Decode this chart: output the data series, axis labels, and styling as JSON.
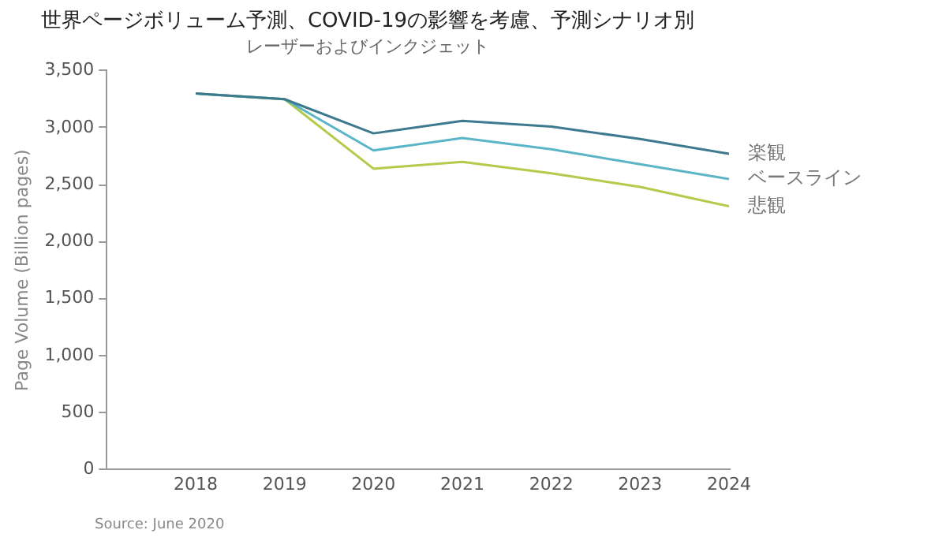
{
  "chart_data": {
    "type": "line",
    "title": "世界ページボリューム予測、COVID-19の影響を考慮、予測シナリオ別",
    "subtitle": "レーザーおよびインクジェット",
    "ylabel": "Page Volume (Billion pages)",
    "annotations": [
      "Source: June 2020"
    ],
    "x": [
      2018,
      2019,
      2020,
      2021,
      2022,
      2023,
      2024
    ],
    "xlim": [
      2017,
      2024
    ],
    "xticks": [
      2018,
      2019,
      2020,
      2021,
      2022,
      2023,
      2024
    ],
    "ylim": [
      0,
      3500
    ],
    "yticks": [
      0,
      500,
      {
        "value": 1000,
        "label": "1,000"
      },
      {
        "value": 1500,
        "label": "1,500"
      },
      {
        "value": 2000,
        "label": "2,000"
      },
      {
        "value": 2500,
        "label": "2,500"
      },
      {
        "value": 3000,
        "label": "3,000"
      },
      {
        "value": 3500,
        "label": "3,500"
      }
    ],
    "grid": false,
    "legend": false,
    "marker": "none",
    "line_style": "solid",
    "series": [
      {
        "name": "楽観",
        "color": "#3e7a8f",
        "values": [
          3300,
          3250,
          2950,
          3060,
          3010,
          2900,
          2770
        ]
      },
      {
        "name": "ベースライン",
        "color": "#5bb5c8",
        "values": [
          3300,
          3250,
          2800,
          2910,
          2810,
          2680,
          2550
        ]
      },
      {
        "name": "悲観",
        "color": "#b5c94a",
        "values": [
          3300,
          3250,
          2640,
          2700,
          2600,
          2480,
          2310
        ]
      }
    ]
  }
}
